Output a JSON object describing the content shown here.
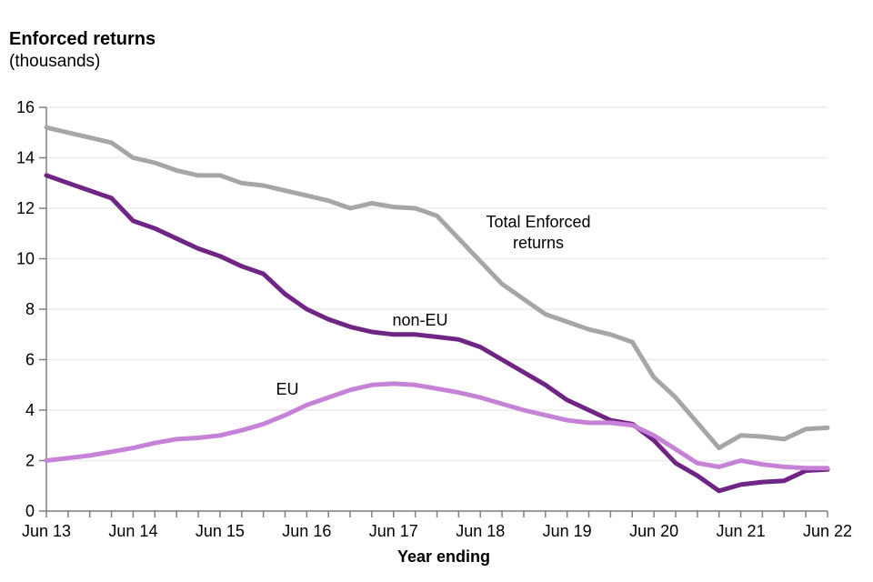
{
  "header": {
    "title": "Enforced returns",
    "subtitle": "(thousands)"
  },
  "colors": {
    "total_line": "#A6A6A6",
    "non_eu_line": "#6F2583",
    "eu_line": "#C582D7",
    "gridline": "#ECECEC",
    "axis": "#7F7F7F",
    "text": "#000000"
  },
  "chart_data": {
    "type": "line",
    "title": "Enforced returns (thousands)",
    "xlabel": "Year ending",
    "ylabel": "Enforced returns (thousands)",
    "ylim": [
      0,
      16
    ],
    "grid": "horizontal",
    "legend": "inline-labels",
    "x_axis": {
      "title": "Year ending",
      "tick_labels": [
        "Jun 13",
        "Jun 14",
        "Jun 15",
        "Jun 16",
        "Jun 17",
        "Jun 18",
        "Jun 19",
        "Jun 20",
        "Jun 21",
        "Jun 22"
      ],
      "points_per_year": 4
    },
    "y_axis": {
      "min": 0,
      "max": 16,
      "tick_step": 2,
      "tick_labels": [
        "0",
        "2",
        "4",
        "6",
        "8",
        "10",
        "12",
        "14",
        "16"
      ]
    },
    "categories": [
      "Jun 13",
      "Sep 13",
      "Dec 13",
      "Mar 14",
      "Jun 14",
      "Sep 14",
      "Dec 14",
      "Mar 15",
      "Jun 15",
      "Sep 15",
      "Dec 15",
      "Mar 16",
      "Jun 16",
      "Sep 16",
      "Dec 16",
      "Mar 17",
      "Jun 17",
      "Sep 17",
      "Dec 17",
      "Mar 18",
      "Jun 18",
      "Sep 18",
      "Dec 18",
      "Mar 19",
      "Jun 19",
      "Sep 19",
      "Dec 19",
      "Mar 20",
      "Jun 20",
      "Sep 20",
      "Dec 20",
      "Mar 21",
      "Jun 21",
      "Sep 21",
      "Dec 21",
      "Mar 22",
      "Jun 22"
    ],
    "series": [
      {
        "name": "Total Enforced returns",
        "color": "#A6A6A6",
        "values": [
          15.2,
          15.0,
          14.8,
          14.6,
          14.0,
          13.8,
          13.5,
          13.3,
          13.3,
          13.0,
          12.9,
          12.7,
          12.5,
          12.3,
          12.0,
          12.2,
          12.05,
          12.0,
          11.7,
          10.8,
          9.9,
          9.0,
          8.4,
          7.8,
          7.5,
          7.2,
          7.0,
          6.7,
          5.3,
          4.5,
          3.5,
          2.5,
          3.0,
          2.95,
          2.85,
          3.25,
          3.3
        ]
      },
      {
        "name": "non-EU",
        "color": "#6F2583",
        "values": [
          13.3,
          13.0,
          12.7,
          12.4,
          11.5,
          11.2,
          10.8,
          10.4,
          10.1,
          9.7,
          9.4,
          8.6,
          8.0,
          7.6,
          7.3,
          7.1,
          7.0,
          7.0,
          6.9,
          6.8,
          6.5,
          6.0,
          5.5,
          5.0,
          4.4,
          4.0,
          3.6,
          3.45,
          2.8,
          1.9,
          1.4,
          0.8,
          1.05,
          1.15,
          1.2,
          1.6,
          1.65
        ]
      },
      {
        "name": "EU",
        "color": "#C582D7",
        "values": [
          2.0,
          2.1,
          2.2,
          2.35,
          2.5,
          2.7,
          2.85,
          2.9,
          3.0,
          3.2,
          3.45,
          3.8,
          4.2,
          4.5,
          4.8,
          5.0,
          5.05,
          5.0,
          4.85,
          4.7,
          4.5,
          4.25,
          4.0,
          3.8,
          3.6,
          3.5,
          3.5,
          3.4,
          3.0,
          2.45,
          1.9,
          1.75,
          2.0,
          1.85,
          1.75,
          1.7,
          1.7
        ]
      }
    ],
    "annotations": {
      "total": {
        "lines": [
          "Total Enforced",
          "returns"
        ]
      },
      "non_eu": {
        "lines": [
          "non-EU"
        ]
      },
      "eu": {
        "lines": [
          "EU"
        ]
      }
    }
  }
}
